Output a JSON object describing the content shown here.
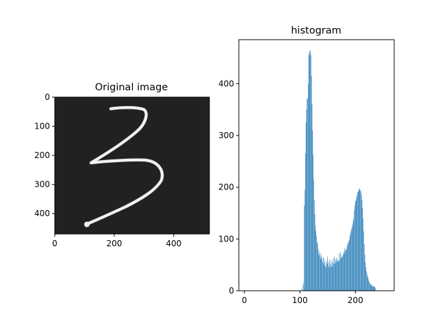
{
  "chart_data": [
    {
      "type": "image",
      "title": "Original image",
      "xlabel": "",
      "ylabel": "",
      "xlim": [
        0,
        520
      ],
      "ylim": [
        470,
        0
      ],
      "x_ticks": [
        0,
        200,
        400
      ],
      "y_ticks": [
        0,
        100,
        200,
        300,
        400
      ],
      "content": "handwritten digit 3 (white stroke on dark background)",
      "background_color": "#1b1b1b",
      "stroke_color": "#e6e6e6"
    },
    {
      "type": "bar",
      "title": "histogram",
      "xlabel": "",
      "ylabel": "",
      "xlim": [
        -10,
        270
      ],
      "ylim": [
        0,
        485
      ],
      "x_ticks": [
        0,
        100,
        200
      ],
      "y_ticks": [
        0,
        100,
        200,
        300,
        400
      ],
      "bar_color": "#1f77b4",
      "grid": false,
      "bins": [
        [
          103,
          3
        ],
        [
          105,
          10
        ],
        [
          107,
          15
        ],
        [
          108,
          165
        ],
        [
          109,
          195
        ],
        [
          110,
          265
        ],
        [
          111,
          325
        ],
        [
          112,
          350
        ],
        [
          113,
          370
        ],
        [
          114,
          372
        ],
        [
          115,
          400
        ],
        [
          116,
          455
        ],
        [
          117,
          460
        ],
        [
          118,
          462
        ],
        [
          119,
          465
        ],
        [
          120,
          455
        ],
        [
          121,
          415
        ],
        [
          122,
          360
        ],
        [
          123,
          310
        ],
        [
          124,
          262
        ],
        [
          125,
          215
        ],
        [
          126,
          175
        ],
        [
          127,
          148
        ],
        [
          128,
          125
        ],
        [
          129,
          115
        ],
        [
          130,
          105
        ],
        [
          131,
          95
        ],
        [
          132,
          90
        ],
        [
          133,
          80
        ],
        [
          134,
          70
        ],
        [
          135,
          75
        ],
        [
          136,
          68
        ],
        [
          137,
          62
        ],
        [
          138,
          72
        ],
        [
          139,
          66
        ],
        [
          140,
          60
        ],
        [
          141,
          55
        ],
        [
          142,
          65
        ],
        [
          143,
          50
        ],
        [
          144,
          62
        ],
        [
          145,
          55
        ],
        [
          146,
          48
        ],
        [
          147,
          45
        ],
        [
          148,
          58
        ],
        [
          149,
          52
        ],
        [
          150,
          66
        ],
        [
          151,
          54
        ],
        [
          152,
          47
        ],
        [
          153,
          60
        ],
        [
          154,
          45
        ],
        [
          155,
          52
        ],
        [
          156,
          58
        ],
        [
          157,
          48
        ],
        [
          158,
          55
        ],
        [
          159,
          47
        ],
        [
          160,
          62
        ],
        [
          161,
          53
        ],
        [
          162,
          66
        ],
        [
          163,
          52
        ],
        [
          164,
          61
        ],
        [
          165,
          55
        ],
        [
          166,
          64
        ],
        [
          167,
          58
        ],
        [
          168,
          61
        ],
        [
          169,
          56
        ],
        [
          170,
          57
        ],
        [
          171,
          72
        ],
        [
          172,
          60
        ],
        [
          173,
          74
        ],
        [
          174,
          63
        ],
        [
          175,
          69
        ],
        [
          176,
          64
        ],
        [
          177,
          66
        ],
        [
          178,
          70
        ],
        [
          179,
          75
        ],
        [
          180,
          72
        ],
        [
          181,
          82
        ],
        [
          182,
          77
        ],
        [
          183,
          80
        ],
        [
          184,
          79
        ],
        [
          185,
          85
        ],
        [
          186,
          90
        ],
        [
          187,
          93
        ],
        [
          188,
          96
        ],
        [
          189,
          98
        ],
        [
          190,
          105
        ],
        [
          191,
          110
        ],
        [
          192,
          115
        ],
        [
          193,
          120
        ],
        [
          194,
          122
        ],
        [
          195,
          128
        ],
        [
          196,
          135
        ],
        [
          197,
          140
        ],
        [
          198,
          155
        ],
        [
          199,
          165
        ],
        [
          200,
          172
        ],
        [
          201,
          175
        ],
        [
          202,
          180
        ],
        [
          203,
          185
        ],
        [
          204,
          190
        ],
        [
          205,
          192
        ],
        [
          206,
          194
        ],
        [
          207,
          196
        ],
        [
          208,
          198
        ],
        [
          209,
          194
        ],
        [
          210,
          192
        ],
        [
          211,
          185
        ],
        [
          212,
          175
        ],
        [
          213,
          160
        ],
        [
          214,
          140
        ],
        [
          215,
          115
        ],
        [
          216,
          90
        ],
        [
          217,
          70
        ],
        [
          218,
          55
        ],
        [
          219,
          45
        ],
        [
          220,
          38
        ],
        [
          221,
          33
        ],
        [
          222,
          28
        ],
        [
          223,
          25
        ],
        [
          224,
          20
        ],
        [
          225,
          17
        ],
        [
          226,
          15
        ],
        [
          227,
          13
        ],
        [
          228,
          12
        ],
        [
          229,
          11
        ],
        [
          230,
          10
        ],
        [
          231,
          9
        ],
        [
          232,
          9
        ],
        [
          233,
          8
        ],
        [
          234,
          8
        ],
        [
          235,
          7
        ],
        [
          236,
          6
        ]
      ]
    }
  ]
}
